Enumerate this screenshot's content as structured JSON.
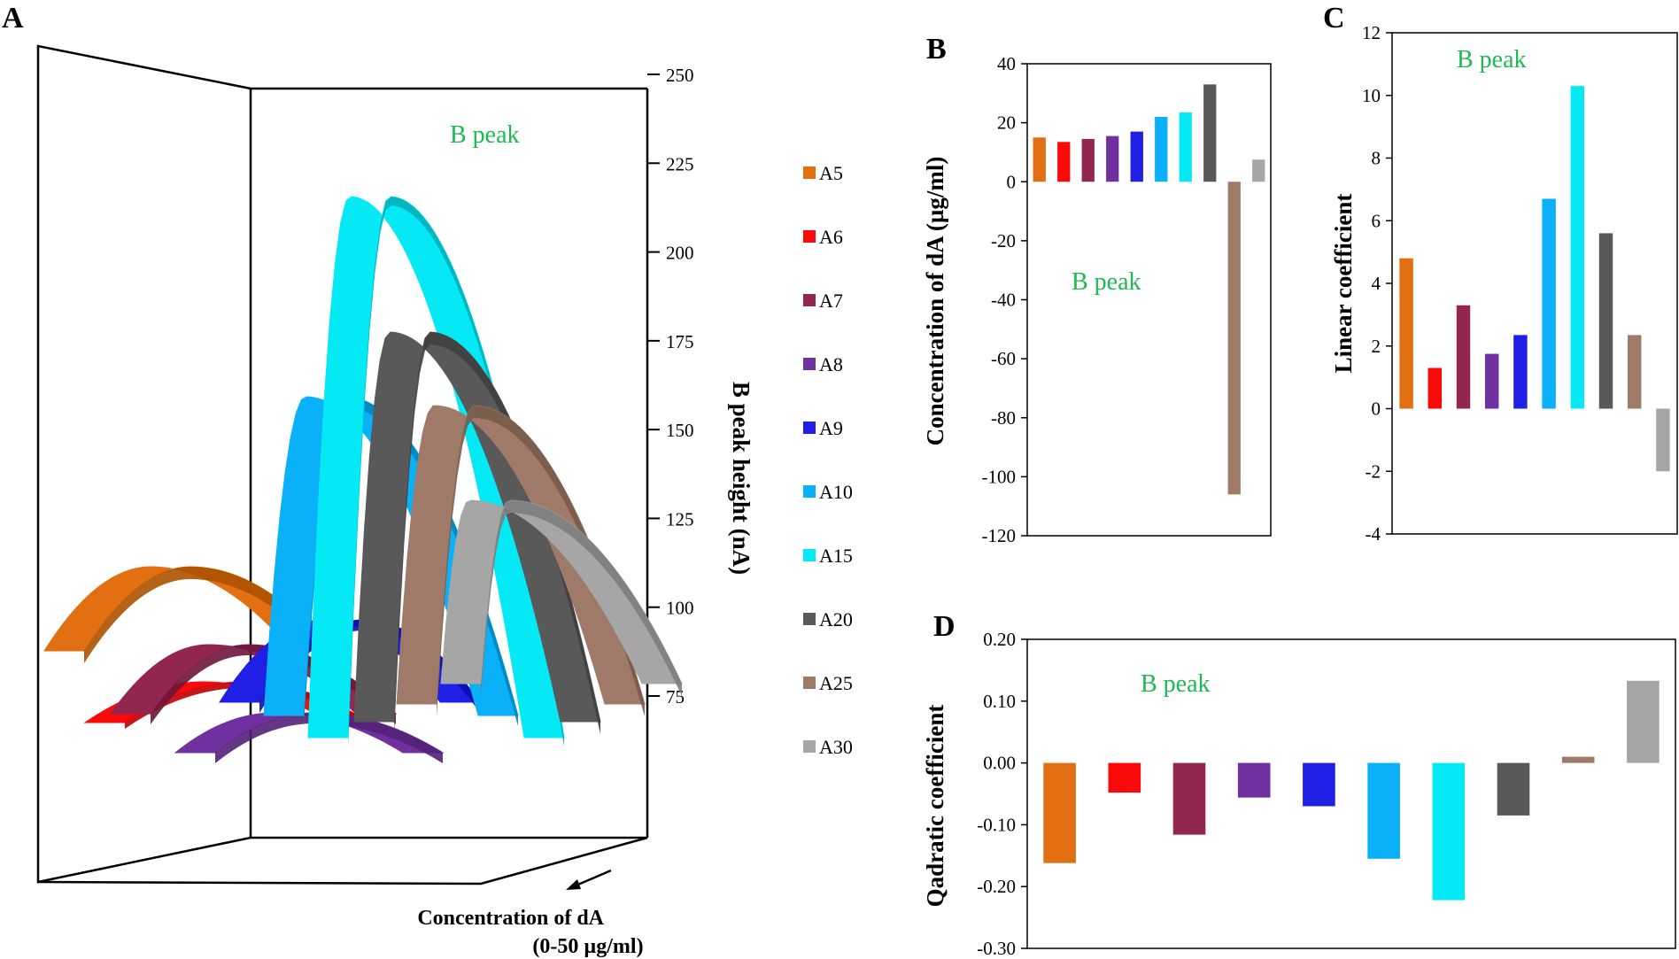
{
  "series": [
    {
      "name": "A5",
      "color": "#e26f11"
    },
    {
      "name": "A6",
      "color": "#fa0a0a"
    },
    {
      "name": "A7",
      "color": "#93264f"
    },
    {
      "name": "A8",
      "color": "#7030a0"
    },
    {
      "name": "A9",
      "color": "#1f1fe5"
    },
    {
      "name": "A10",
      "color": "#0ab0f8"
    },
    {
      "name": "A15",
      "color": "#05e9f5"
    },
    {
      "name": "A20",
      "color": "#595959"
    },
    {
      "name": "A25",
      "color": "#a07a68"
    },
    {
      "name": "A30",
      "color": "#a6a6a6"
    }
  ],
  "panels": {
    "a": {
      "label": "A",
      "annotation": "B peak",
      "zlabel": "B peak height (nA)",
      "xlabel_line1": "Concentration of  dA",
      "xlabel_line2": "(0-50 µg/ml)"
    },
    "b": {
      "label": "B",
      "annotation": "B peak",
      "ylabel": "Concentration of dA (µg/ml)"
    },
    "c": {
      "label": "C",
      "annotation": "B peak",
      "ylabel": "Linear coefficient"
    },
    "d": {
      "label": "D",
      "annotation": "B peak",
      "ylabel": "Qadratic coefficient"
    }
  },
  "chart_data": [
    {
      "panel": "A",
      "type": "3d-surface",
      "title": "",
      "zlabel": "B peak height (nA)",
      "xlabel": "Concentration of  dA (0-50 µg/ml)",
      "zlim": [
        75,
        250
      ],
      "zticks": [
        75,
        100,
        125,
        150,
        175,
        200,
        225,
        250
      ],
      "zticklabels": [
        "75",
        "100",
        "125",
        "150",
        "175",
        "200",
        "225",
        "250"
      ],
      "series": [
        "A5",
        "A6",
        "A7",
        "A8",
        "A9",
        "A10",
        "A15",
        "A20",
        "A25",
        "A30"
      ]
    },
    {
      "panel": "B",
      "type": "bar",
      "ylabel": "Concentration of dA (µg/ml)",
      "categories": [
        "A5",
        "A6",
        "A7",
        "A8",
        "A9",
        "A10",
        "A15",
        "A20",
        "A25",
        "A30"
      ],
      "values": [
        15,
        13.5,
        14.5,
        15.5,
        17,
        22,
        23.5,
        33,
        -106,
        7.5
      ],
      "ylim": [
        -120,
        40
      ],
      "yticks": [
        40,
        20,
        0,
        -20,
        -40,
        -60,
        -80,
        -100,
        -120
      ],
      "yticklabels": [
        "40",
        "20",
        "0",
        "-20",
        "-40",
        "-60",
        "-80",
        "-100",
        "-120"
      ]
    },
    {
      "panel": "C",
      "type": "bar",
      "ylabel": "Linear coefficient",
      "categories": [
        "A5",
        "A6",
        "A7",
        "A8",
        "A9",
        "A10",
        "A15",
        "A20",
        "A25",
        "A30"
      ],
      "values": [
        4.8,
        1.3,
        3.3,
        1.75,
        2.35,
        6.7,
        10.3,
        5.6,
        2.35,
        -2.0
      ],
      "ylim": [
        -4,
        12
      ],
      "yticks": [
        12,
        10,
        8,
        6,
        4,
        2,
        0,
        -2,
        -4
      ],
      "yticklabels": [
        "12",
        "10",
        "8",
        "6",
        "4",
        "2",
        "0",
        "-2",
        "-4"
      ]
    },
    {
      "panel": "D",
      "type": "bar",
      "ylabel": "Qadratic coefficient",
      "categories": [
        "A5",
        "A6",
        "A7",
        "A8",
        "A9",
        "A10",
        "A15",
        "A20",
        "A25",
        "A30"
      ],
      "values": [
        -0.162,
        -0.048,
        -0.116,
        -0.056,
        -0.07,
        -0.155,
        -0.222,
        -0.085,
        0.01,
        0.133
      ],
      "ylim": [
        -0.3,
        0.2
      ],
      "yticks": [
        0.2,
        0.1,
        0,
        -0.1,
        -0.2,
        -0.3
      ],
      "yticklabels": [
        "0.20",
        "0.10",
        "0.00",
        "-0.10",
        "-0.20",
        "-0.30"
      ]
    }
  ]
}
